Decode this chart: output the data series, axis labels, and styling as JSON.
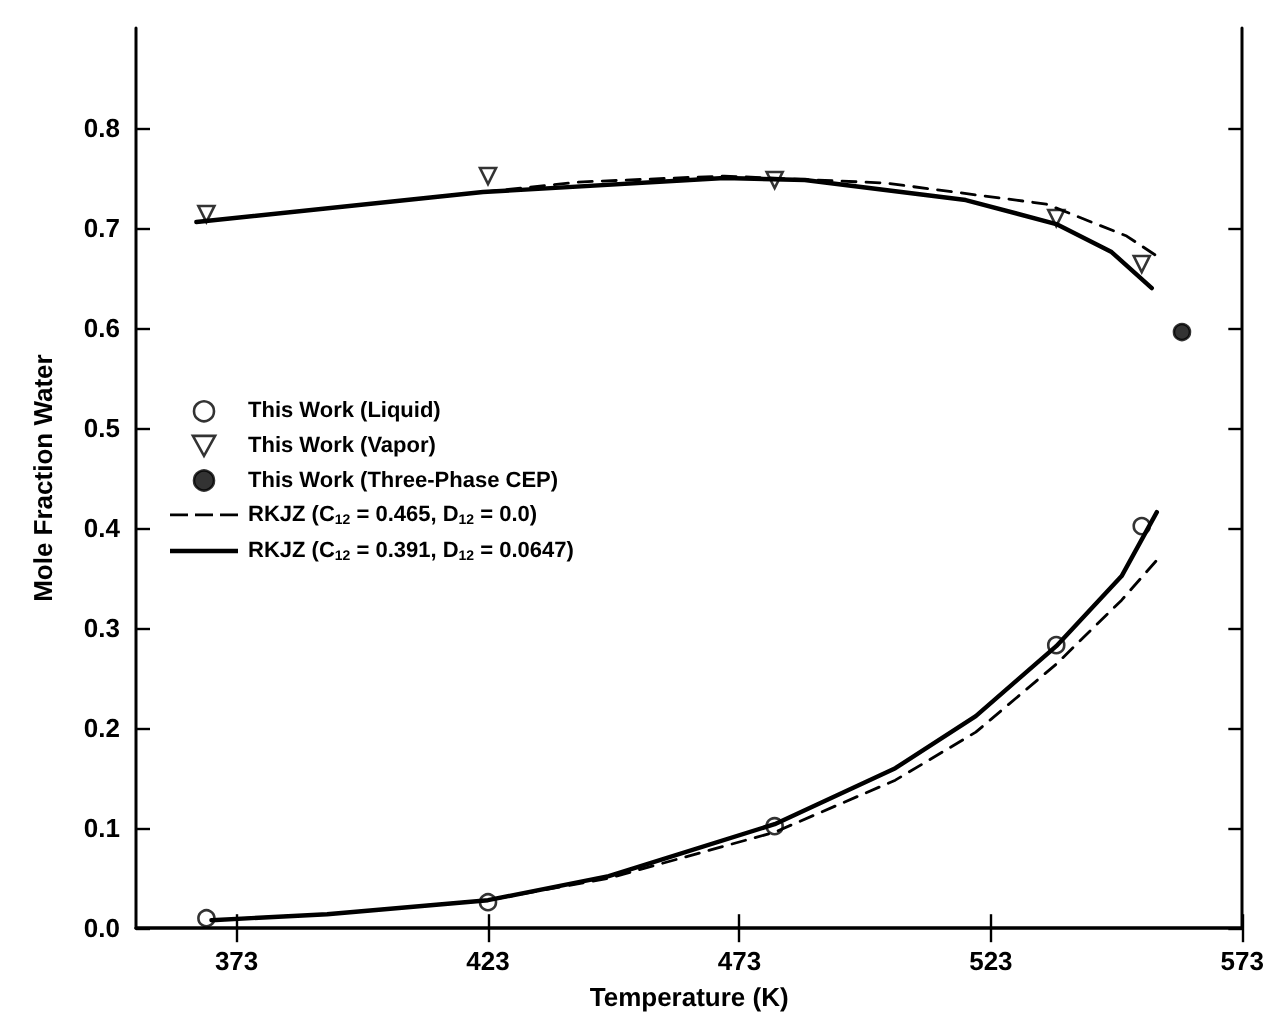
{
  "chart_data": {
    "type": "scatter",
    "xlabel": "Temperature (K)",
    "ylabel": "Mole Fraction Water",
    "xlim": [
      353,
      573
    ],
    "xticks": [
      373,
      423,
      473,
      523,
      573
    ],
    "ylim": [
      0,
      0.9
    ],
    "yticks": [
      {
        "value": 0,
        "label": "0.0"
      },
      0.1,
      0.2,
      0.3,
      0.4,
      0.5,
      0.6,
      0.7,
      0.8
    ],
    "grid": false,
    "legend": "left",
    "series": [
      {
        "name": "This Work (Liquid)",
        "marker": "circle",
        "color": "#000000",
        "x": [
          367,
          423,
          480,
          536,
          553
        ],
        "values": [
          0.01,
          0.026,
          0.102,
          0.283,
          0.402
        ]
      },
      {
        "name": "This Work (Vapor)",
        "marker": "triangle-down",
        "color": "#000000",
        "x": [
          367,
          423,
          480,
          536,
          553
        ],
        "values": [
          0.714,
          0.752,
          0.748,
          0.71,
          0.664
        ]
      },
      {
        "name": "This Work (Three-Phase CEP)",
        "marker": "circle",
        "color": "#000000",
        "x": [
          561
        ],
        "values": [
          0.596
        ]
      },
      {
        "name": "RKJZ (C$_{12}$ = 0.465, D$_{12}$ = 0.0)",
        "type": "line",
        "line_style": "dashed",
        "marker": "none",
        "color": "#000000",
        "x": [
          365,
          422,
          441,
          470,
          502,
          534,
          550,
          556
        ],
        "values": [
          0.706,
          0.736,
          0.746,
          0.752,
          0.745,
          0.724,
          0.692,
          0.672
        ]
      },
      {
        "name": "RKJZ (C$_{12}$ = 0.391, D$_{12}$ = 0.0647)",
        "type": "line",
        "line_style": "solid",
        "marker": "none",
        "color": "#000000",
        "x": [
          365,
          422,
          470,
          486,
          518,
          536,
          547,
          555
        ],
        "values": [
          0.706,
          0.736,
          0.75,
          0.748,
          0.728,
          0.704,
          0.676,
          0.64
        ]
      },
      {
        "type": "line",
        "line_style": "dashed",
        "marker": "none",
        "color": "#000000",
        "x": [
          368,
          391,
          423,
          447,
          480,
          504,
          520,
          536,
          549,
          556
        ],
        "values": [
          0.008,
          0.014,
          0.028,
          0.05,
          0.096,
          0.148,
          0.196,
          0.264,
          0.328,
          0.368
        ]
      },
      {
        "type": "line",
        "line_style": "solid",
        "marker": "none",
        "color": "#000000",
        "x": [
          368,
          391,
          423,
          447,
          480,
          504,
          520,
          536,
          549,
          556
        ],
        "values": [
          0.008,
          0.014,
          0.028,
          0.052,
          0.104,
          0.16,
          0.212,
          0.282,
          0.352,
          0.416
        ]
      }
    ]
  }
}
